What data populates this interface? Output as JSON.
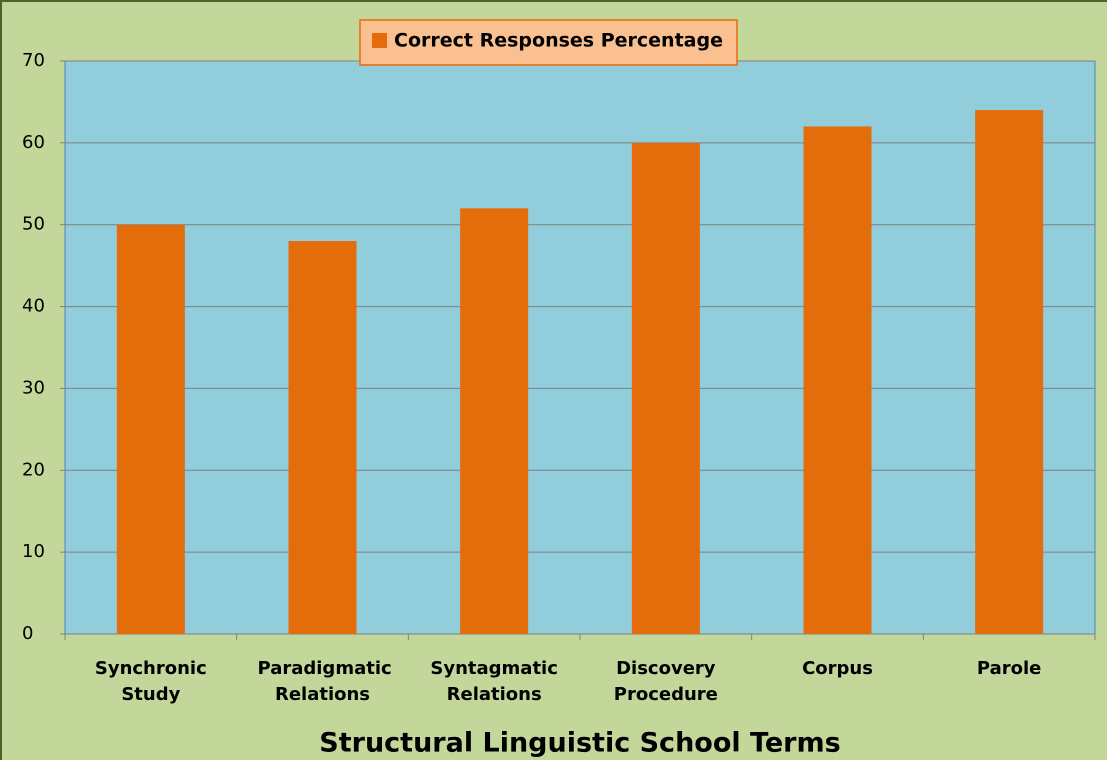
{
  "chart_data": {
    "type": "bar",
    "legend_label": "Correct Responses Percentage",
    "x_label": "Structural Linguistic School Terms",
    "categories": [
      "Synchronic Study",
      "Paradigmatic Relations",
      "Syntagmatic Relations",
      "Discovery Procedure",
      "Corpus",
      "Parole"
    ],
    "values": [
      50,
      48,
      52,
      60,
      62,
      64
    ],
    "color": "#e46c0a",
    "ylim": [
      0,
      70
    ],
    "yticks": [
      0,
      10,
      20,
      30,
      40,
      50,
      60,
      70
    ],
    "grid": true
  }
}
